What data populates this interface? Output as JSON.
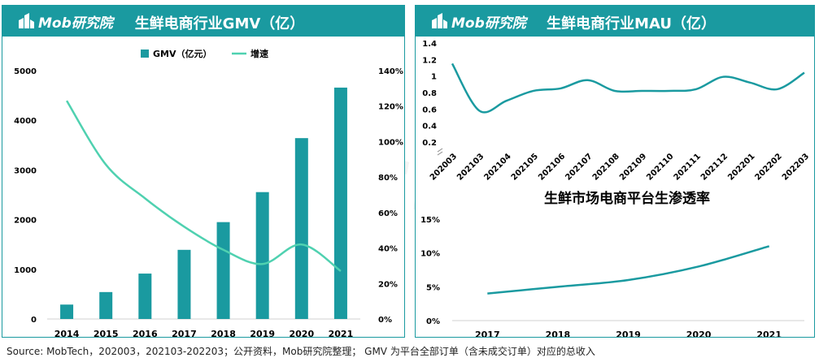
{
  "brand": {
    "logo_text": "Mob研究院",
    "primary_color": "#1a9aa0",
    "line_color": "#4fd1b0"
  },
  "watermark": "MobTech袤博",
  "source_note": "Source:  MobTech，202003，202103-202203；公开资料，Mob研究院整理； GMV 为平台全部订单（含未成交订单）对应的总收入",
  "chart_data": [
    {
      "type": "bar+line",
      "title": "生鲜电商行业GMV（亿）",
      "categories": [
        "2014",
        "2015",
        "2016",
        "2017",
        "2018",
        "2019",
        "2020",
        "2021"
      ],
      "series": [
        {
          "name": "GMV（亿元）",
          "kind": "bar",
          "axis": "left",
          "color": "#1a9aa0",
          "values": [
            290,
            542,
            914,
            1392,
            1950,
            2554,
            3641,
            4658
          ]
        },
        {
          "name": "增速",
          "kind": "line",
          "axis": "right",
          "color": "#4fd1b0",
          "values": [
            123,
            87,
            68,
            52,
            39,
            31,
            42,
            27
          ]
        }
      ],
      "y_left": {
        "min": 0,
        "max": 5000,
        "ticks": [
          "0",
          "1000",
          "2000",
          "3000",
          "4000",
          "5000"
        ]
      },
      "y_right": {
        "min": 0,
        "max": 140,
        "ticks": [
          "0%",
          "20%",
          "40%",
          "60%",
          "80%",
          "100%",
          "120%",
          "140%"
        ]
      },
      "legend": "top-center",
      "grid": false
    },
    {
      "type": "line",
      "title": "生鲜电商行业MAU（亿）",
      "categories": [
        "202003",
        "202103",
        "202104",
        "202105",
        "202106",
        "202107",
        "202108",
        "202109",
        "202110",
        "202111",
        "202112",
        "202201",
        "202202",
        "202203"
      ],
      "series": [
        {
          "color": "#1a9aa0",
          "values": [
            1.15,
            0.58,
            0.7,
            0.82,
            0.85,
            0.95,
            0.82,
            0.82,
            0.82,
            0.84,
            0.99,
            0.92,
            0.84,
            1.04
          ]
        }
      ],
      "y": {
        "min": 0.2,
        "max": 1.4,
        "ticks": [
          "0.2",
          "0.4",
          "0.6",
          "0.8",
          "1",
          "1.2",
          "1.4"
        ]
      },
      "axis_break": true,
      "grid": false
    },
    {
      "type": "line",
      "title": "生鲜市场电商平台生渗透率",
      "categories": [
        "2017",
        "2018",
        "2019",
        "2020",
        "2021"
      ],
      "series": [
        {
          "color": "#1a9aa0",
          "values": [
            4.0,
            5.0,
            6.0,
            8.0,
            11.0
          ]
        }
      ],
      "y": {
        "min": 0,
        "max": 15,
        "ticks": [
          "0%",
          "5%",
          "10%",
          "15%"
        ]
      },
      "grid": false
    }
  ]
}
